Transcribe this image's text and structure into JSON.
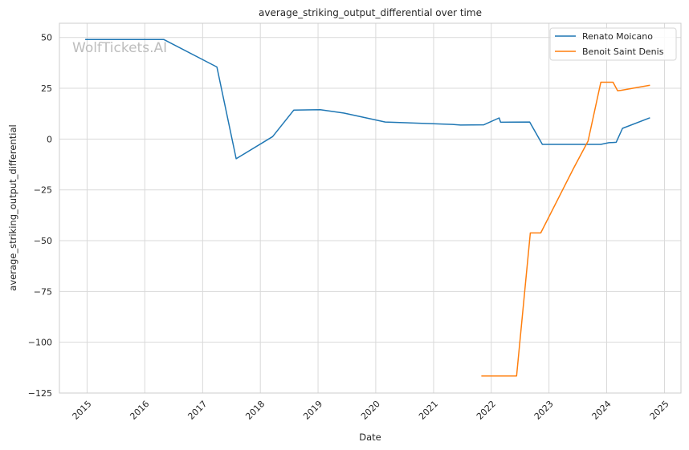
{
  "chart_data": {
    "type": "line",
    "title": "average_striking_output_differential over time",
    "xlabel": "Date",
    "ylabel": "average_striking_output_differential",
    "x_ticks": [
      "2015",
      "2016",
      "2017",
      "2018",
      "2019",
      "2020",
      "2021",
      "2022",
      "2023",
      "2024",
      "2025"
    ],
    "y_ticks": [
      50,
      25,
      0,
      -25,
      -50,
      -75,
      -100,
      -125
    ],
    "y_tick_labels": [
      "50",
      "25",
      "0",
      "−25",
      "−50",
      "−75",
      "−100",
      "−125"
    ],
    "xlim": [
      "2014-07-10",
      "2025-04-15"
    ],
    "ylim": [
      -125,
      57
    ],
    "grid": true,
    "legend_position": "top-right",
    "watermark": "WolfTickets.AI",
    "series": [
      {
        "name": "Renato Moicano",
        "color": "#1f77b4",
        "points": [
          [
            "2014-12-20",
            49
          ],
          [
            "2016-05-01",
            49
          ],
          [
            "2017-04-01",
            35.5
          ],
          [
            "2017-08-01",
            -9.7
          ],
          [
            "2018-03-20",
            1.2
          ],
          [
            "2018-08-01",
            14.3
          ],
          [
            "2019-01-15",
            14.5
          ],
          [
            "2019-06-15",
            12.8
          ],
          [
            "2020-03-01",
            8.4
          ],
          [
            "2021-05-01",
            7.2
          ],
          [
            "2021-06-20",
            6.9
          ],
          [
            "2021-11-15",
            7.0
          ],
          [
            "2022-02-20",
            10.4
          ],
          [
            "2022-03-01",
            8.3
          ],
          [
            "2022-09-01",
            8.4
          ],
          [
            "2022-11-20",
            -2.6
          ],
          [
            "2023-11-25",
            -2.6
          ],
          [
            "2024-01-15",
            -1.8
          ],
          [
            "2024-03-01",
            -1.6
          ],
          [
            "2024-04-10",
            5.3
          ],
          [
            "2024-10-01",
            10.5
          ]
        ]
      },
      {
        "name": "Benoit Saint Denis",
        "color": "#ff7f0e",
        "points": [
          [
            "2021-10-30",
            -116.6
          ],
          [
            "2022-06-10",
            -116.6
          ],
          [
            "2022-09-05",
            -46.2
          ],
          [
            "2022-11-10",
            -46.2
          ],
          [
            "2023-06-05",
            -14.5
          ],
          [
            "2023-09-05",
            -1.0
          ],
          [
            "2023-11-25",
            28.0
          ],
          [
            "2024-02-10",
            28.0
          ],
          [
            "2024-03-10",
            23.8
          ],
          [
            "2024-04-01",
            24.0
          ],
          [
            "2024-10-01",
            26.5
          ]
        ]
      }
    ]
  }
}
